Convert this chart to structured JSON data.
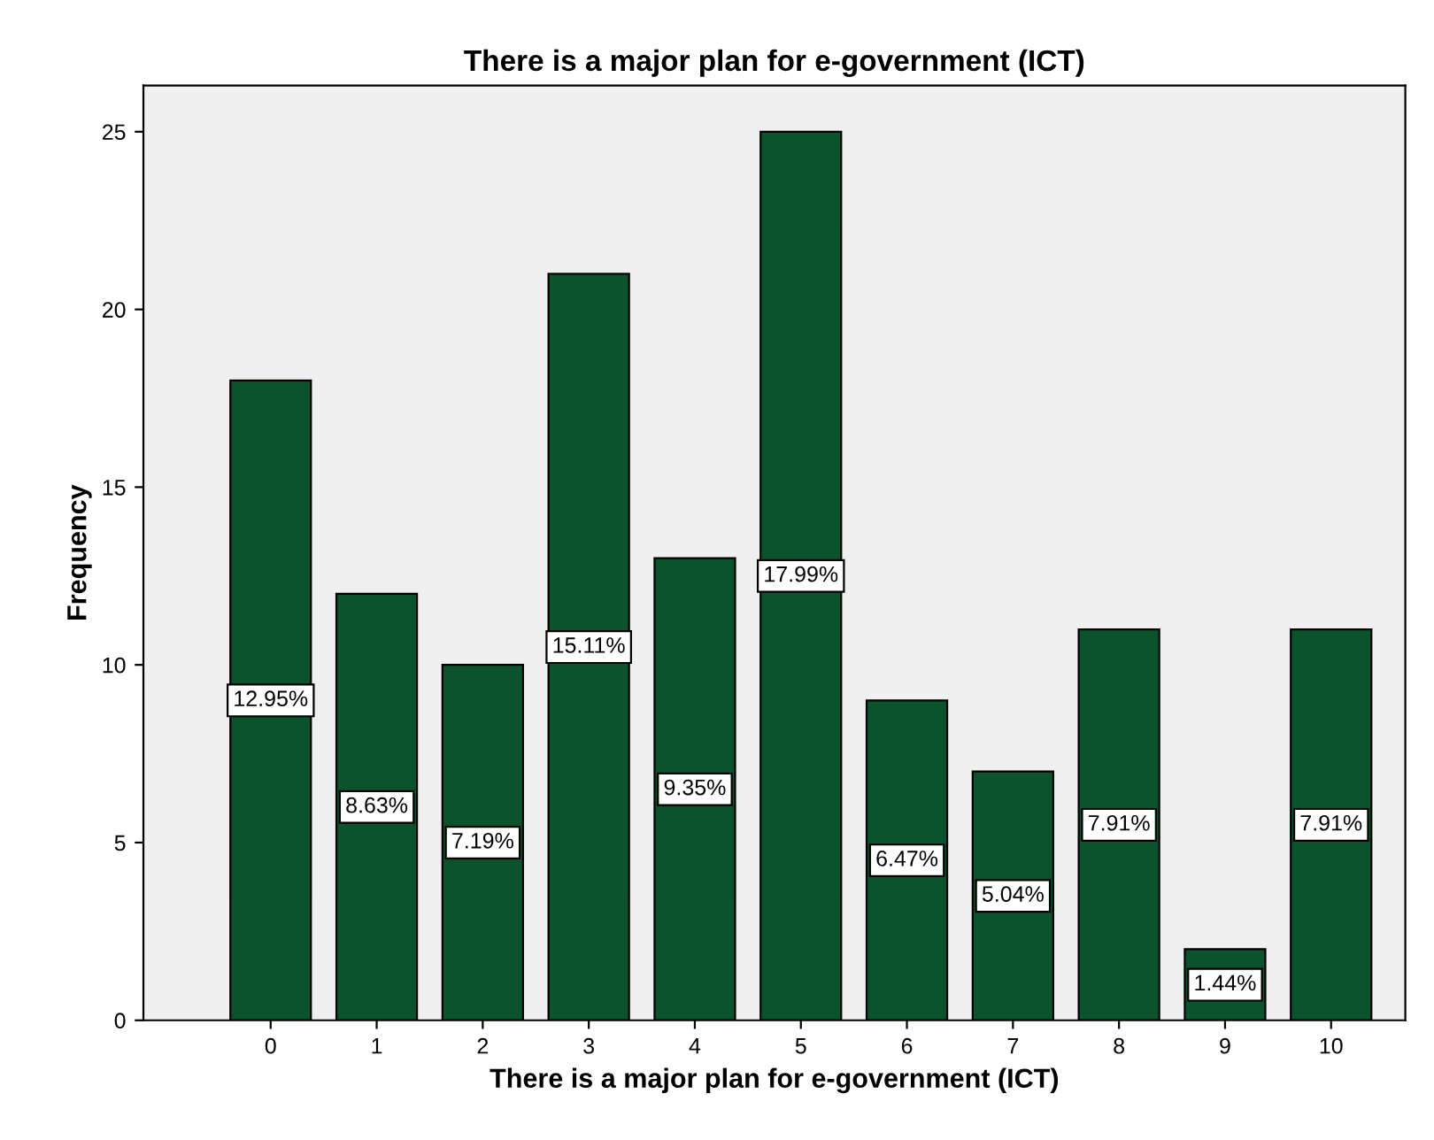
{
  "chart_data": {
    "type": "bar",
    "title": "There is a major plan for e-government (ICT)",
    "xlabel": "There is a major plan for e-government (ICT)",
    "ylabel": "Frequency",
    "categories": [
      "0",
      "1",
      "2",
      "3",
      "4",
      "5",
      "6",
      "7",
      "8",
      "9",
      "10"
    ],
    "values": [
      18,
      12,
      10,
      21,
      13,
      25,
      9,
      7,
      11,
      2,
      11
    ],
    "annotations": [
      "12.95%",
      "8.63%",
      "7.19%",
      "15.11%",
      "9.35%",
      "17.99%",
      "6.47%",
      "5.04%",
      "7.91%",
      "1.44%",
      "7.91%"
    ],
    "color": "#0b532d",
    "ylim": [
      0,
      26.3
    ],
    "yticks": [
      0,
      5,
      10,
      15,
      20,
      25
    ],
    "grid": false,
    "legend": false
  }
}
